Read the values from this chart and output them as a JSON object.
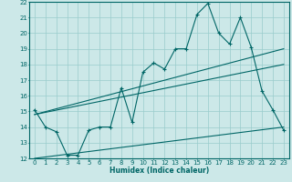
{
  "xlabel": "Humidex (Indice chaleur)",
  "bg_color": "#cce8e8",
  "grid_color": "#99cccc",
  "line_color": "#006666",
  "xlim": [
    -0.5,
    23.5
  ],
  "ylim": [
    12,
    22
  ],
  "xticks": [
    0,
    1,
    2,
    3,
    4,
    5,
    6,
    7,
    8,
    9,
    10,
    11,
    12,
    13,
    14,
    15,
    16,
    17,
    18,
    19,
    20,
    21,
    22,
    23
  ],
  "yticks": [
    12,
    13,
    14,
    15,
    16,
    17,
    18,
    19,
    20,
    21,
    22
  ],
  "series1_x": [
    0,
    1,
    2,
    3,
    4,
    5,
    6,
    7,
    8,
    9,
    10,
    11,
    12,
    13,
    14,
    15,
    16,
    17,
    18,
    19,
    20,
    21,
    22,
    23
  ],
  "series1_y": [
    15.1,
    14.0,
    13.7,
    12.2,
    12.2,
    13.8,
    14.0,
    14.0,
    16.5,
    14.3,
    17.5,
    18.1,
    17.7,
    19.0,
    19.0,
    21.2,
    21.9,
    20.0,
    19.3,
    21.0,
    19.1,
    16.3,
    15.1,
    13.8
  ],
  "series2_x": [
    0,
    23
  ],
  "series2_y": [
    14.8,
    19.0
  ],
  "series3_x": [
    0,
    23
  ],
  "series3_y": [
    14.8,
    18.0
  ],
  "series4_x": [
    0,
    23
  ],
  "series4_y": [
    12.0,
    14.0
  ]
}
